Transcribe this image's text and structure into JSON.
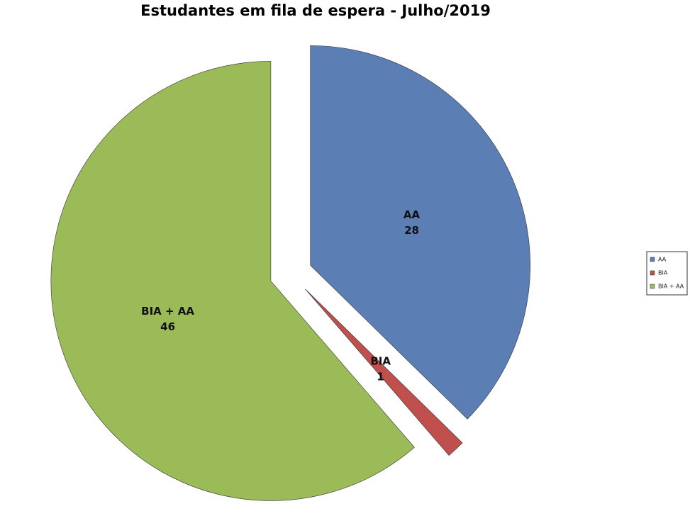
{
  "chart_data": {
    "type": "pie",
    "title": "Estudantes em fila de espera - Julho/2019",
    "categories": [
      "AA",
      "BIA",
      "BIA + AA"
    ],
    "values": [
      28,
      1,
      46
    ],
    "colors": [
      "#5b7fb4",
      "#c0504d",
      "#9bbb59"
    ],
    "legend": "right"
  }
}
